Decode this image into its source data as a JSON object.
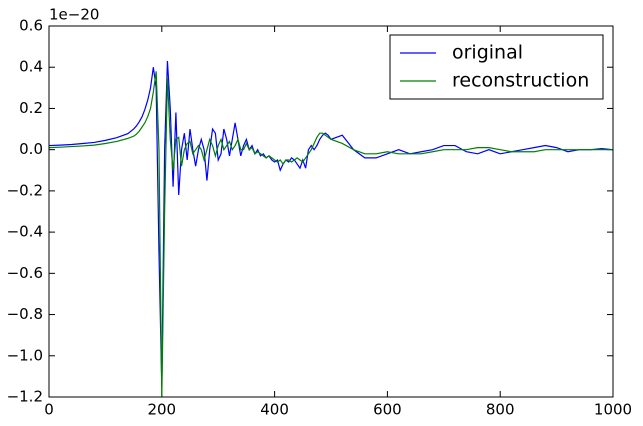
{
  "chart_data": {
    "type": "line",
    "y_offset_label": "1e−20",
    "x": [
      0,
      20,
      40,
      60,
      80,
      100,
      120,
      140,
      150,
      155,
      160,
      165,
      170,
      175,
      180,
      185,
      190,
      195,
      200,
      205,
      210,
      215,
      220,
      225,
      230,
      235,
      240,
      245,
      250,
      255,
      260,
      265,
      270,
      275,
      280,
      285,
      290,
      295,
      300,
      305,
      310,
      315,
      320,
      325,
      330,
      335,
      340,
      345,
      350,
      355,
      360,
      365,
      370,
      375,
      380,
      385,
      390,
      395,
      400,
      405,
      410,
      415,
      420,
      425,
      430,
      435,
      440,
      445,
      450,
      455,
      460,
      465,
      470,
      475,
      480,
      485,
      490,
      495,
      500,
      520,
      540,
      560,
      580,
      600,
      620,
      640,
      660,
      680,
      700,
      720,
      740,
      760,
      780,
      800,
      820,
      840,
      860,
      880,
      900,
      920,
      940,
      960,
      980,
      1000
    ],
    "series": [
      {
        "name": "original",
        "color": "#0000ff",
        "values": [
          0.02,
          0.022,
          0.025,
          0.03,
          0.035,
          0.045,
          0.058,
          0.078,
          0.1,
          0.115,
          0.135,
          0.16,
          0.195,
          0.24,
          0.3,
          0.4,
          0.3,
          -0.5,
          -1.15,
          0.0,
          0.43,
          0.2,
          -0.18,
          0.18,
          -0.22,
          0.0,
          0.08,
          -0.05,
          0.1,
          0.0,
          -0.08,
          0.0,
          0.05,
          0.0,
          -0.15,
          0.0,
          0.1,
          0.08,
          -0.05,
          -0.02,
          0.1,
          0.05,
          -0.03,
          0.05,
          0.13,
          0.05,
          -0.03,
          0.02,
          0.05,
          0.0,
          0.02,
          -0.02,
          0.0,
          -0.03,
          -0.02,
          -0.04,
          -0.03,
          -0.05,
          -0.06,
          -0.05,
          -0.1,
          -0.07,
          -0.05,
          -0.06,
          -0.04,
          -0.05,
          -0.07,
          -0.09,
          -0.05,
          -0.09,
          0.0,
          0.02,
          0.0,
          0.02,
          0.05,
          0.07,
          0.08,
          0.07,
          0.05,
          0.07,
          0.0,
          -0.04,
          -0.04,
          -0.02,
          0.0,
          -0.02,
          -0.01,
          0.0,
          0.02,
          0.02,
          -0.01,
          -0.02,
          0.0,
          -0.02,
          -0.01,
          0.0,
          0.01,
          0.02,
          0.01,
          -0.01,
          0.0,
          0.0,
          0.005,
          0.0
        ]
      },
      {
        "name": "reconstruction",
        "color": "#008000",
        "values": [
          0.01,
          0.012,
          0.015,
          0.018,
          0.022,
          0.03,
          0.04,
          0.055,
          0.065,
          0.075,
          0.09,
          0.11,
          0.13,
          0.16,
          0.2,
          0.28,
          0.38,
          0.0,
          -1.2,
          -0.3,
          0.35,
          0.05,
          -0.1,
          0.05,
          0.06,
          -0.08,
          0.0,
          0.03,
          0.04,
          -0.02,
          0.0,
          0.02,
          0.0,
          -0.05,
          0.0,
          0.05,
          0.02,
          -0.03,
          0.02,
          0.05,
          0.0,
          0.02,
          0.04,
          0.0,
          0.02,
          0.05,
          0.0,
          0.0,
          0.03,
          0.0,
          0.01,
          -0.02,
          -0.01,
          -0.02,
          -0.03,
          -0.04,
          -0.03,
          -0.04,
          -0.05,
          -0.06,
          -0.05,
          -0.07,
          -0.05,
          -0.05,
          -0.06,
          -0.05,
          -0.04,
          -0.05,
          -0.06,
          -0.04,
          -0.02,
          0.0,
          0.03,
          0.06,
          0.08,
          0.08,
          0.07,
          0.06,
          0.05,
          0.03,
          0.0,
          -0.02,
          -0.02,
          -0.01,
          -0.02,
          -0.02,
          -0.02,
          -0.01,
          0.0,
          0.0,
          0.0,
          0.01,
          0.01,
          0.0,
          -0.01,
          -0.01,
          -0.01,
          0.0,
          0.0,
          0.0,
          0.0,
          0.0,
          0.0,
          0.0
        ]
      }
    ],
    "xlim": [
      0,
      1000
    ],
    "xticks": [
      0,
      200,
      400,
      600,
      800,
      1000
    ],
    "ylim": [
      -1.2,
      0.6
    ],
    "yticks": [
      {
        "value": -1.2,
        "label": "−1.2"
      },
      {
        "value": -1.0,
        "label": "−1.0"
      },
      {
        "value": -0.8,
        "label": "−0.8"
      },
      {
        "value": -0.6,
        "label": "−0.6"
      },
      {
        "value": -0.4,
        "label": "−0.4"
      },
      {
        "value": -0.2,
        "label": "−0.2"
      },
      {
        "value": 0,
        "label": "0.0"
      },
      0.2,
      0.4,
      0.6
    ],
    "grid": false,
    "legend": "upper-right"
  }
}
